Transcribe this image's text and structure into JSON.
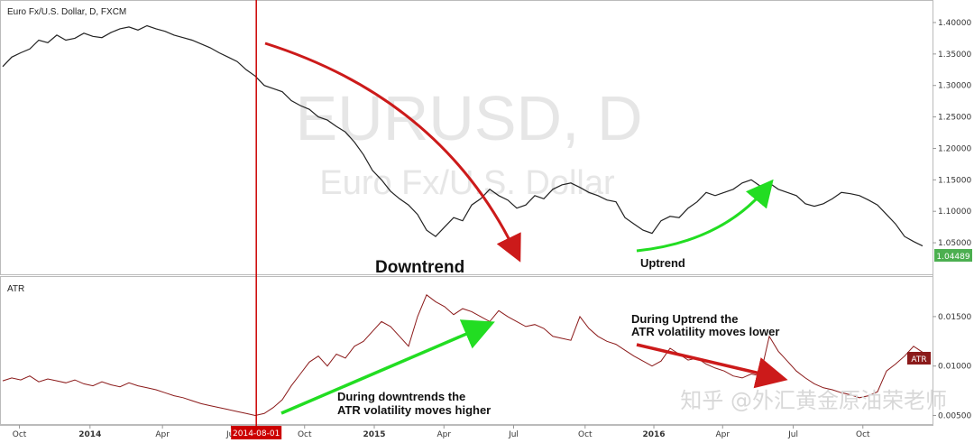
{
  "chart_data": [
    {
      "type": "line",
      "panel": "price",
      "title": "Euro Fx/U.S. Dollar, D, FXCM",
      "watermark_main": "EURUSD, D",
      "watermark_sub": "Euro Fx/U.S. Dollar",
      "y_ticks": [
        "1.40000",
        "1.35000",
        "1.30000",
        "1.25000",
        "1.20000",
        "1.15000",
        "1.10000",
        "1.05000"
      ],
      "ylim": [
        1.02,
        1.41
      ],
      "last_price": "1.04489",
      "series": [
        {
          "values": [
            1.33,
            1.345,
            1.352,
            1.358,
            1.372,
            1.368,
            1.38,
            1.372,
            1.375,
            1.383,
            1.378,
            1.376,
            1.384,
            1.39,
            1.393,
            1.388,
            1.395,
            1.39,
            1.386,
            1.38,
            1.376,
            1.372,
            1.366,
            1.36,
            1.352,
            1.345,
            1.338,
            1.325,
            1.315,
            1.3,
            1.295,
            1.29,
            1.276,
            1.268,
            1.262,
            1.25,
            1.245,
            1.235,
            1.226,
            1.21,
            1.19,
            1.165,
            1.15,
            1.132,
            1.12,
            1.11,
            1.095,
            1.07,
            1.06,
            1.075,
            1.09,
            1.085,
            1.11,
            1.12,
            1.135,
            1.125,
            1.118,
            1.105,
            1.11,
            1.125,
            1.12,
            1.135,
            1.142,
            1.145,
            1.138,
            1.13,
            1.125,
            1.118,
            1.115,
            1.09,
            1.08,
            1.07,
            1.065,
            1.085,
            1.092,
            1.09,
            1.105,
            1.115,
            1.13,
            1.125,
            1.13,
            1.135,
            1.145,
            1.15,
            1.14,
            1.145,
            1.135,
            1.13,
            1.125,
            1.112,
            1.108,
            1.112,
            1.12,
            1.13,
            1.128,
            1.125,
            1.118,
            1.11,
            1.095,
            1.08,
            1.06,
            1.052,
            1.045
          ]
        }
      ]
    },
    {
      "type": "line",
      "panel": "atr",
      "title": "ATR",
      "indicator_label": "ATR",
      "y_ticks": [
        "0.01500",
        "0.01000",
        "0.00500"
      ],
      "ylim": [
        0.0045,
        0.018
      ],
      "series": [
        {
          "values": [
            0.0085,
            0.0088,
            0.0086,
            0.009,
            0.0084,
            0.0087,
            0.0085,
            0.0083,
            0.0086,
            0.0082,
            0.008,
            0.0084,
            0.0081,
            0.0079,
            0.0083,
            0.008,
            0.0078,
            0.0076,
            0.0073,
            0.007,
            0.0068,
            0.0065,
            0.0062,
            0.006,
            0.0058,
            0.0056,
            0.0054,
            0.0052,
            0.005,
            0.0052,
            0.0058,
            0.0066,
            0.008,
            0.0092,
            0.0104,
            0.011,
            0.01,
            0.0112,
            0.0108,
            0.012,
            0.0125,
            0.0135,
            0.0145,
            0.014,
            0.013,
            0.012,
            0.015,
            0.0172,
            0.0165,
            0.016,
            0.0152,
            0.0158,
            0.0155,
            0.015,
            0.0145,
            0.0156,
            0.015,
            0.0145,
            0.014,
            0.0142,
            0.0138,
            0.013,
            0.0128,
            0.0126,
            0.015,
            0.0138,
            0.013,
            0.0125,
            0.0122,
            0.0116,
            0.011,
            0.0105,
            0.01,
            0.0105,
            0.0118,
            0.0112,
            0.0106,
            0.0108,
            0.0102,
            0.0098,
            0.0095,
            0.009,
            0.0088,
            0.0092,
            0.009,
            0.013,
            0.0115,
            0.0105,
            0.0095,
            0.0088,
            0.0082,
            0.0078,
            0.0076,
            0.0073,
            0.0071,
            0.0068,
            0.007,
            0.0074,
            0.0095,
            0.0102,
            0.011,
            0.012,
            0.0114
          ]
        }
      ]
    }
  ],
  "x_axis": {
    "ticks": [
      {
        "label": "Oct",
        "frac": 0.018
      },
      {
        "label": "2014",
        "frac": 0.094
      },
      {
        "label": "Apr",
        "frac": 0.172
      },
      {
        "label": "Jul",
        "frac": 0.246
      },
      {
        "label": "Oct",
        "frac": 0.325
      },
      {
        "label": "2015",
        "frac": 0.4
      },
      {
        "label": "Apr",
        "frac": 0.475
      },
      {
        "label": "Jul",
        "frac": 0.55
      },
      {
        "label": "Oct",
        "frac": 0.627
      },
      {
        "label": "2016",
        "frac": 0.701
      },
      {
        "label": "Apr",
        "frac": 0.775
      },
      {
        "label": "Jul",
        "frac": 0.851
      },
      {
        "label": "Oct",
        "frac": 0.926
      }
    ],
    "marker_date": "2014-08-01",
    "marker_frac": 0.273
  },
  "annotations": {
    "downtrend_label": "Downtrend",
    "uptrend_label": "Uptrend",
    "atr_down_line1": "During downtrends the",
    "atr_down_line2": "ATR volatility moves higher",
    "atr_up_line1": "During Uptrend the",
    "atr_up_line2": "ATR volatility moves lower"
  },
  "watermark_text": "知乎 @外汇黄金原油荣老师",
  "colors": {
    "price_line": "#222222",
    "atr_line": "#8b1a1a",
    "red_arrow": "#cc1a1a",
    "green_arrow": "#22dd22",
    "marker_line": "#cc0000",
    "last_price_badge": "#4caf50",
    "atr_badge": "#8b1a1a"
  }
}
